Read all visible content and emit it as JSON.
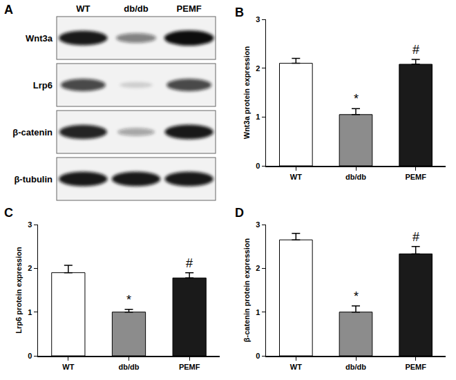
{
  "blot": {
    "panel": "A",
    "lanes": [
      "WT",
      "db/db",
      "PEMF"
    ],
    "rows": [
      {
        "label": "Wnt3a",
        "bands": [
          0.95,
          0.5,
          1.0
        ]
      },
      {
        "label": "Lrp6",
        "bands": [
          0.75,
          0.15,
          0.75
        ]
      },
      {
        "label": "β-catenin",
        "bands": [
          0.9,
          0.35,
          0.95
        ]
      },
      {
        "label": "β-tubulin",
        "bands": [
          0.95,
          0.95,
          0.95
        ]
      }
    ]
  },
  "chart_data": [
    {
      "panel": "B",
      "type": "bar",
      "categories": [
        "WT",
        "db/db",
        "PEMF"
      ],
      "values": [
        2.1,
        1.05,
        2.08
      ],
      "errors": [
        0.1,
        0.12,
        0.1
      ],
      "colors": [
        "#ffffff",
        "#8c8c8c",
        "#1a1a1a"
      ],
      "y_label": "Wnt3a protein expression",
      "ylim": [
        0,
        3
      ],
      "yticks": [
        0,
        1,
        2,
        3
      ],
      "grid": false,
      "annotations": [
        {
          "category": "db/db",
          "text": "*"
        },
        {
          "category": "PEMF",
          "text": "#"
        }
      ]
    },
    {
      "panel": "C",
      "type": "bar",
      "categories": [
        "WT",
        "db/db",
        "PEMF"
      ],
      "values": [
        1.9,
        1.0,
        1.78
      ],
      "errors": [
        0.17,
        0.06,
        0.12
      ],
      "colors": [
        "#ffffff",
        "#8c8c8c",
        "#1a1a1a"
      ],
      "y_label": "Lrp6 protein expression",
      "ylim": [
        0,
        3
      ],
      "yticks": [
        0,
        1,
        2,
        3
      ],
      "grid": false,
      "annotations": [
        {
          "category": "db/db",
          "text": "*"
        },
        {
          "category": "PEMF",
          "text": "#"
        }
      ]
    },
    {
      "panel": "D",
      "type": "bar",
      "categories": [
        "WT",
        "db/db",
        "PEMF"
      ],
      "values": [
        2.65,
        1.0,
        2.33
      ],
      "errors": [
        0.15,
        0.14,
        0.17
      ],
      "colors": [
        "#ffffff",
        "#8c8c8c",
        "#1a1a1a"
      ],
      "y_label": "β-catenin protein expression",
      "ylim": [
        0,
        3
      ],
      "yticks": [
        0,
        1,
        2,
        3
      ],
      "grid": false,
      "annotations": [
        {
          "category": "db/db",
          "text": "*"
        },
        {
          "category": "PEMF",
          "text": "#"
        }
      ]
    }
  ]
}
